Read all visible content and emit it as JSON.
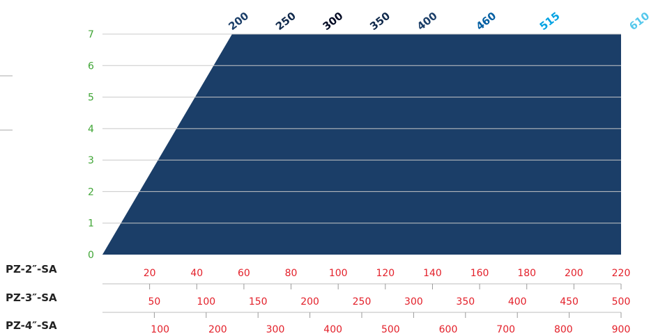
{
  "chart_data": {
    "type": "area",
    "ylim": [
      0,
      7
    ],
    "y_ticks": [
      "0",
      "1",
      "2",
      "3",
      "4",
      "5",
      "6",
      "7"
    ],
    "xlim": [
      0,
      220
    ],
    "x_axes": [
      {
        "label": "PZ-2″-SA",
        "ticks": [
          "20",
          "40",
          "60",
          "80",
          "100",
          "120",
          "140",
          "160",
          "180",
          "200",
          "220"
        ]
      },
      {
        "label": "PZ-3″-SA",
        "ticks": [
          "50",
          "100",
          "150",
          "200",
          "250",
          "300",
          "350",
          "400",
          "450",
          "500"
        ]
      },
      {
        "label": "PZ-4″-SA",
        "ticks": [
          "100",
          "200",
          "300",
          "400",
          "500",
          "600",
          "700",
          "800",
          "900"
        ]
      }
    ],
    "series": [
      {
        "name": "200",
        "x_at_top": 55,
        "color": "#1b3e68",
        "label_color": "#1b3e68"
      },
      {
        "name": "250",
        "x_at_top": 75,
        "color": "#10294b",
        "label_color": "#10294b"
      },
      {
        "name": "300",
        "x_at_top": 95,
        "color": "#020a23",
        "label_color": "#020a23"
      },
      {
        "name": "350",
        "x_at_top": 115,
        "color": "#112a4e",
        "label_color": "#10294b"
      },
      {
        "name": "400",
        "x_at_top": 135,
        "color": "#184575",
        "label_color": "#1b3e68"
      },
      {
        "name": "460",
        "x_at_top": 160,
        "color": "#005ea2",
        "label_color": "#005ea2"
      },
      {
        "name": "515",
        "x_at_top": 187,
        "color": "#00a2e3",
        "label_color": "#00a2e3"
      },
      {
        "name": "610",
        "y_at_right": 6.75,
        "color": "#55c8ec",
        "label_color": "#55c8ec"
      }
    ],
    "grid": true
  }
}
